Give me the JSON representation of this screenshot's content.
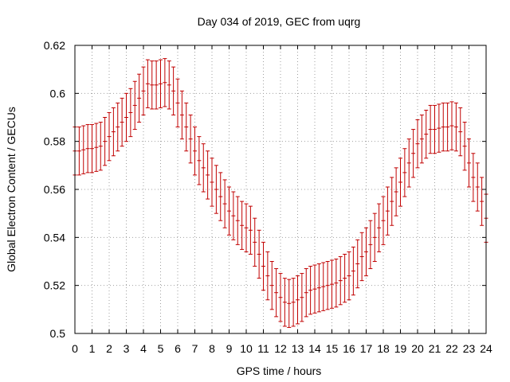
{
  "chart_data": {
    "type": "scatter",
    "title": "Day 034 of 2019, GEC from uqrg",
    "xlabel": "GPS time / hours",
    "ylabel": "Global Electron Content / GECUs",
    "xlim": [
      0,
      24
    ],
    "ylim": [
      0.5,
      0.62
    ],
    "xticks": [
      0,
      1,
      2,
      3,
      4,
      5,
      6,
      7,
      8,
      9,
      10,
      11,
      12,
      13,
      14,
      15,
      16,
      17,
      18,
      19,
      20,
      21,
      22,
      23,
      24
    ],
    "yticks": [
      0.5,
      0.52,
      0.54,
      0.56,
      0.58,
      0.6,
      0.62
    ],
    "ytick_labels": [
      "0.5",
      "0.52",
      "0.54",
      "0.56",
      "0.58",
      "0.6",
      "0.62"
    ],
    "grid": true,
    "error_bar": 0.01,
    "color": "#c00000",
    "x": [
      0,
      0.25,
      0.5,
      0.75,
      1,
      1.25,
      1.5,
      1.75,
      2,
      2.25,
      2.5,
      2.75,
      3,
      3.25,
      3.5,
      3.75,
      4,
      4.25,
      4.5,
      4.75,
      5,
      5.25,
      5.5,
      5.75,
      6,
      6.25,
      6.5,
      6.75,
      7,
      7.25,
      7.5,
      7.75,
      8,
      8.25,
      8.5,
      8.75,
      9,
      9.25,
      9.5,
      9.75,
      10,
      10.25,
      10.5,
      10.75,
      11,
      11.25,
      11.5,
      11.75,
      12,
      12.25,
      12.5,
      12.75,
      13,
      13.25,
      13.5,
      13.75,
      14,
      14.25,
      14.5,
      14.75,
      15,
      15.25,
      15.5,
      15.75,
      16,
      16.25,
      16.5,
      16.75,
      17,
      17.25,
      17.5,
      17.75,
      18,
      18.25,
      18.5,
      18.75,
      19,
      19.25,
      19.5,
      19.75,
      20,
      20.25,
      20.5,
      20.75,
      21,
      21.25,
      21.5,
      21.75,
      22,
      22.25,
      22.5,
      22.75,
      23,
      23.25,
      23.5,
      23.75,
      24
    ],
    "y": [
      0.576,
      0.576,
      0.5765,
      0.577,
      0.577,
      0.5775,
      0.578,
      0.58,
      0.582,
      0.584,
      0.586,
      0.588,
      0.59,
      0.592,
      0.595,
      0.598,
      0.601,
      0.604,
      0.6035,
      0.6035,
      0.604,
      0.6045,
      0.6035,
      0.601,
      0.596,
      0.591,
      0.586,
      0.581,
      0.576,
      0.572,
      0.569,
      0.566,
      0.563,
      0.56,
      0.557,
      0.554,
      0.551,
      0.549,
      0.547,
      0.545,
      0.544,
      0.543,
      0.538,
      0.533,
      0.528,
      0.524,
      0.52,
      0.517,
      0.515,
      0.513,
      0.5125,
      0.513,
      0.514,
      0.515,
      0.517,
      0.518,
      0.5185,
      0.519,
      0.5195,
      0.52,
      0.5205,
      0.521,
      0.522,
      0.523,
      0.524,
      0.526,
      0.529,
      0.532,
      0.534,
      0.537,
      0.54,
      0.544,
      0.547,
      0.551,
      0.555,
      0.559,
      0.563,
      0.567,
      0.571,
      0.575,
      0.579,
      0.581,
      0.583,
      0.585,
      0.585,
      0.5855,
      0.586,
      0.586,
      0.5865,
      0.586,
      0.584,
      0.578,
      0.571,
      0.565,
      0.561,
      0.555,
      0.548
    ]
  }
}
